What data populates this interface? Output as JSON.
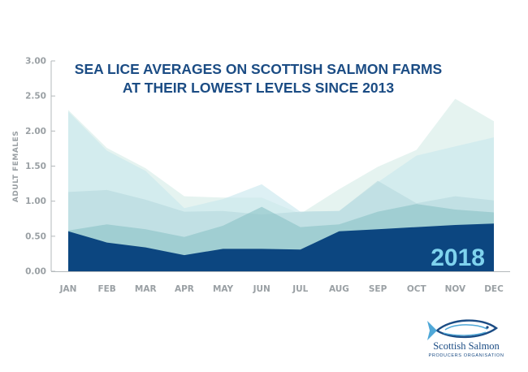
{
  "chart_data": {
    "type": "area",
    "title_lines": [
      "SEA LICE AVERAGES ON SCOTTISH SALMON FARMS",
      "AT THEIR LOWEST LEVELS SINCE 2013"
    ],
    "ylabel": "ADULT FEMALES",
    "ylim": [
      0,
      3.0
    ],
    "y_ticks": [
      "0.00",
      "0.50",
      "1.00",
      "1.50",
      "2.00",
      "2.50",
      "3.00"
    ],
    "categories": [
      "JAN",
      "FEB",
      "MAR",
      "APR",
      "MAY",
      "JUN",
      "JUL",
      "AUG",
      "SEP",
      "OCT",
      "NOV",
      "DEC"
    ],
    "grid": false,
    "highlight_label": "2018",
    "series": [
      {
        "values": [
          2.3,
          1.76,
          1.47,
          1.07,
          1.05,
          1.05,
          0.82,
          1.17,
          1.49,
          1.73,
          2.46,
          2.14
        ],
        "color": "#d5ebe7"
      },
      {
        "values": [
          2.28,
          1.72,
          1.43,
          0.9,
          1.03,
          1.24,
          0.85,
          0.86,
          1.27,
          1.65,
          1.78,
          1.91
        ],
        "color": "#c8e7ee"
      },
      {
        "values": [
          1.13,
          1.16,
          1.02,
          0.85,
          0.86,
          0.81,
          0.85,
          0.86,
          1.29,
          0.97,
          1.07,
          1.01
        ],
        "color": "#b7d8dd"
      },
      {
        "values": [
          0.58,
          0.67,
          0.6,
          0.49,
          0.65,
          0.92,
          0.63,
          0.67,
          0.85,
          0.96,
          0.88,
          0.84
        ],
        "color": "#8cc3c7"
      },
      {
        "values": [
          0.57,
          0.41,
          0.34,
          0.23,
          0.32,
          0.32,
          0.31,
          0.57,
          0.6,
          0.63,
          0.66,
          0.68
        ],
        "color": "#0c4680"
      }
    ]
  },
  "logo": {
    "name": "Scottish Salmon",
    "subtitle": "PRODUCERS ORGANISATION",
    "colors": {
      "dark": "#1b4c84",
      "light": "#4fa8d8"
    }
  }
}
